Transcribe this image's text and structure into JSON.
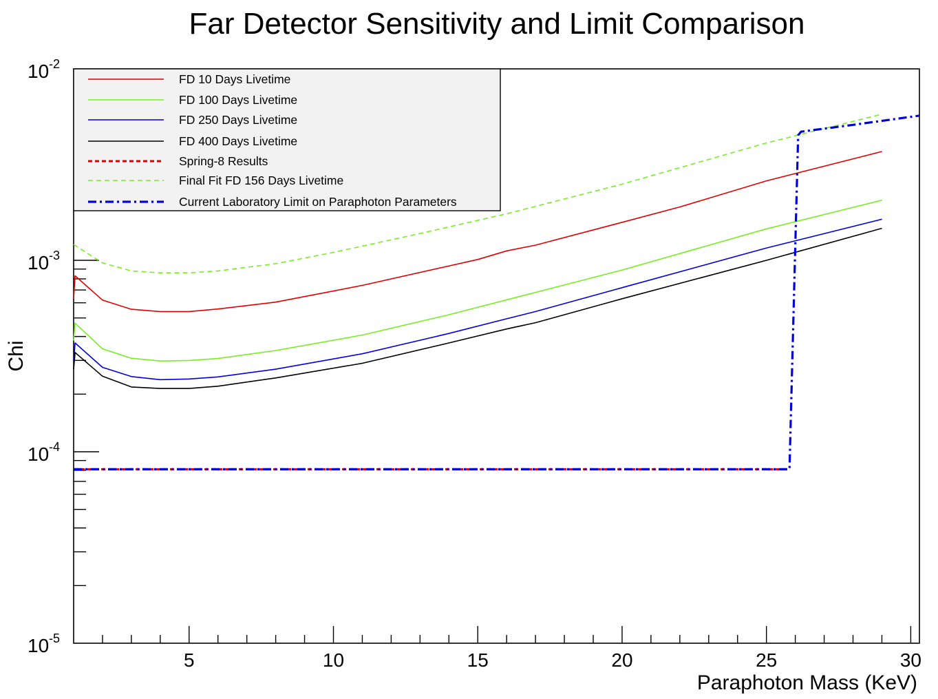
{
  "chart_data": {
    "type": "line",
    "title": "Far Detector Sensitivity and Limit Comparison",
    "xlabel": "Paraphoton Mass (KeV)",
    "ylabel": "Chi",
    "xlim": [
      1,
      30.3
    ],
    "ylim": [
      1e-05,
      0.01
    ],
    "yscale": "log",
    "grid": false,
    "legend_position": "top-left",
    "x_ticks": [
      5,
      10,
      15,
      20,
      25,
      30
    ],
    "y_ticks": [
      {
        "base": "10",
        "exp": "-5",
        "value": 1e-05
      },
      {
        "base": "10",
        "exp": "-4",
        "value": 0.0001
      },
      {
        "base": "10",
        "exp": "-3",
        "value": 0.001
      },
      {
        "base": "10",
        "exp": "-2",
        "value": 0.01
      }
    ],
    "series": [
      {
        "name": "FD 10 Days Livetime",
        "color": "#e00000",
        "style": "solid",
        "width": 1.6,
        "x": [
          1,
          1.05,
          2,
          3,
          4,
          5,
          6,
          8,
          11,
          15,
          16,
          17,
          20,
          22,
          25,
          29
        ],
        "y": [
          0.00063,
          0.00083,
          0.00062,
          0.000555,
          0.00054,
          0.00054,
          0.000557,
          0.000605,
          0.00074,
          0.00101,
          0.00112,
          0.0012,
          0.00158,
          0.0019,
          0.0026,
          0.0037
        ]
      },
      {
        "name": "FD 100 Days Livetime",
        "color": "#77ee22",
        "style": "solid",
        "width": 1.6,
        "x": [
          1,
          1.05,
          2,
          3,
          4,
          5,
          6,
          8,
          11,
          14,
          17,
          20,
          25,
          29
        ],
        "y": [
          0.00038,
          0.00047,
          0.000345,
          0.000308,
          0.000298,
          0.0003,
          0.000307,
          0.000338,
          0.000407,
          0.00052,
          0.00068,
          0.00089,
          0.00146,
          0.00206
        ]
      },
      {
        "name": "FD 250 Days Livetime",
        "color": "#0000dd",
        "style": "solid",
        "width": 1.6,
        "x": [
          1,
          1.05,
          2,
          3,
          4,
          5,
          6,
          8,
          11,
          14,
          16,
          17,
          20,
          25,
          29
        ],
        "y": [
          0.0003,
          0.00037,
          0.000276,
          0.000247,
          0.000238,
          0.00024,
          0.000246,
          0.00027,
          0.000325,
          0.000415,
          0.000495,
          0.00054,
          0.00072,
          0.00116,
          0.00164
        ]
      },
      {
        "name": "FD 400 Days Livetime",
        "color": "#000000",
        "style": "solid",
        "width": 1.6,
        "x": [
          1,
          1.05,
          2,
          3,
          4,
          5,
          6,
          8,
          11,
          14,
          16,
          17,
          20,
          25,
          29
        ],
        "y": [
          0.00027,
          0.00033,
          0.000248,
          0.000218,
          0.000214,
          0.000214,
          0.00022,
          0.000243,
          0.00029,
          0.00037,
          0.000438,
          0.000472,
          0.00063,
          0.001,
          0.00147
        ]
      },
      {
        "name": "Spring-8 Results",
        "color": "#dd0000",
        "style": "dashed",
        "width": 3,
        "x": [
          1,
          25.8
        ],
        "y": [
          8.1e-05,
          8.1e-05
        ]
      },
      {
        "name": "Final Fit FD 156 Days Livetime",
        "color": "#77ee22",
        "style": "dashed-thin",
        "width": 1.6,
        "x": [
          1,
          2,
          3,
          4,
          5,
          6,
          8,
          10,
          13,
          16,
          20,
          25,
          29
        ],
        "y": [
          0.00121,
          0.00097,
          0.00088,
          0.00086,
          0.00086,
          0.00088,
          0.00096,
          0.0011,
          0.00138,
          0.00175,
          0.0025,
          0.0041,
          0.0058
        ]
      },
      {
        "name": "Current Laboratory Limit on Paraphoton Parameters",
        "color": "#0000dd",
        "style": "dashdot",
        "width": 3.2,
        "x": [
          1,
          25.8,
          26.1,
          26.2,
          28,
          30.3
        ],
        "y": [
          8.1e-05,
          8.1e-05,
          0.0045,
          0.0047,
          0.0051,
          0.0057
        ]
      }
    ]
  }
}
